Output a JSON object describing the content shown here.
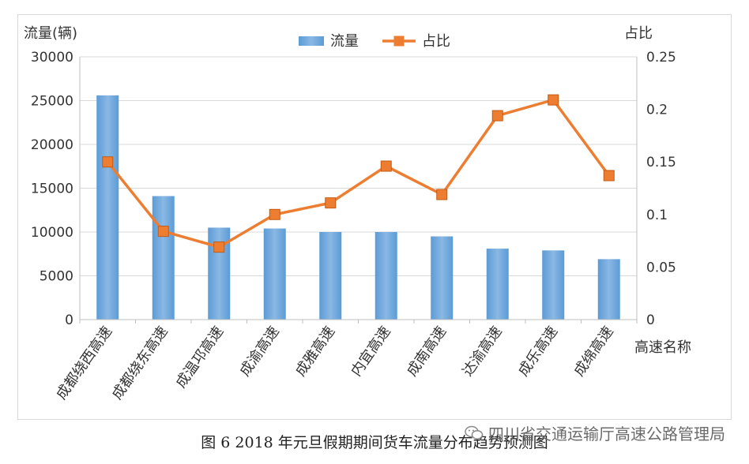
{
  "caption": "图 6  2018 年元旦假期期间货车流量分布趋势预测图",
  "watermark": "四川省交通运输厅高速公路管理局",
  "colors": {
    "bar": "#5b9bd5",
    "bar_light": "#8ab8e4",
    "line": "#ed7d31",
    "grid": "#d9d9d9",
    "text": "#333333"
  },
  "chart_data": {
    "type": "bar",
    "xlabel": "高速名称",
    "ylabel": "流量(辆)",
    "y2label": "占比",
    "categories": [
      "成都绕西高速",
      "成都绕东高速",
      "成温邛高速",
      "成渝高速",
      "成雅高速",
      "内宜高速",
      "成南高速",
      "达渝高速",
      "成乐高速",
      "成绵高速"
    ],
    "series": [
      {
        "name": "流量",
        "type": "bar",
        "axis": "left",
        "values": [
          25600,
          14100,
          10500,
          10400,
          10000,
          10000,
          9500,
          8100,
          7900,
          6900
        ]
      },
      {
        "name": "占比",
        "type": "line",
        "axis": "right",
        "values": [
          0.15,
          0.084,
          0.069,
          0.1,
          0.111,
          0.146,
          0.119,
          0.194,
          0.209,
          0.137
        ]
      }
    ],
    "ylim": [
      0,
      30000
    ],
    "yticks": [
      "0",
      "5000",
      "10000",
      "15000",
      "20000",
      "25000",
      "30000"
    ],
    "y2lim": [
      0,
      0.25
    ],
    "y2ticks": [
      "0",
      "0.05",
      "0.1",
      "0.15",
      "0.2",
      "0.25"
    ],
    "grid": true,
    "legend": "top-center"
  }
}
